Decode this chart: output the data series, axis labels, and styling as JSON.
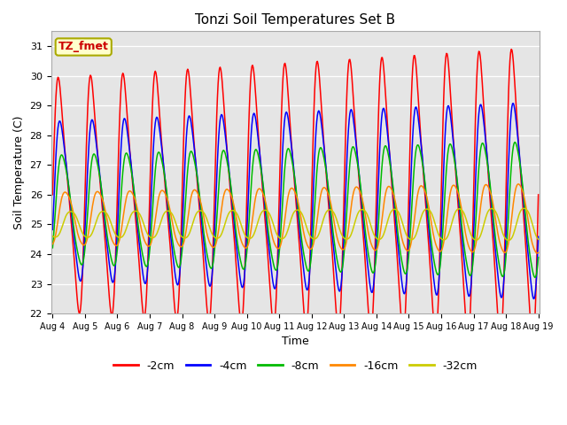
{
  "title": "Tonzi Soil Temperatures Set B",
  "xlabel": "Time",
  "ylabel": "Soil Temperature (C)",
  "ylim": [
    22.0,
    31.5
  ],
  "yticks": [
    22.0,
    23.0,
    24.0,
    25.0,
    26.0,
    27.0,
    28.0,
    29.0,
    30.0,
    31.0
  ],
  "bg_color": "#e5e5e5",
  "annotation_text": "TZ_fmet",
  "annotation_color": "#cc0000",
  "annotation_bg": "#ffffcc",
  "annotation_border": "#aaaa00",
  "series": [
    {
      "label": "-2cm",
      "color": "#ff0000",
      "amplitude": 3.5,
      "base": 26.0,
      "phase": 0.0,
      "phase_shift": 0.0,
      "amp_growth": 0.06
    },
    {
      "label": "-4cm",
      "color": "#0000ff",
      "amplitude": 2.5,
      "base": 25.8,
      "phase": 0.25,
      "phase_shift": 0.0,
      "amp_growth": 0.04
    },
    {
      "label": "-8cm",
      "color": "#00bb00",
      "amplitude": 1.8,
      "base": 25.5,
      "phase": 0.55,
      "phase_shift": 0.0,
      "amp_growth": 0.03
    },
    {
      "label": "-16cm",
      "color": "#ff8800",
      "amplitude": 0.9,
      "base": 25.2,
      "phase": 1.1,
      "phase_shift": 0.0,
      "amp_growth": 0.02
    },
    {
      "label": "-32cm",
      "color": "#cccc00",
      "amplitude": 0.45,
      "base": 25.0,
      "phase": 2.0,
      "phase_shift": 0.0,
      "amp_growth": 0.008
    }
  ],
  "n_points": 720,
  "x_start": 4,
  "x_end": 19,
  "period_days": 1.0,
  "xtick_days": [
    4,
    5,
    6,
    7,
    8,
    9,
    10,
    11,
    12,
    13,
    14,
    15,
    16,
    17,
    18,
    19
  ]
}
